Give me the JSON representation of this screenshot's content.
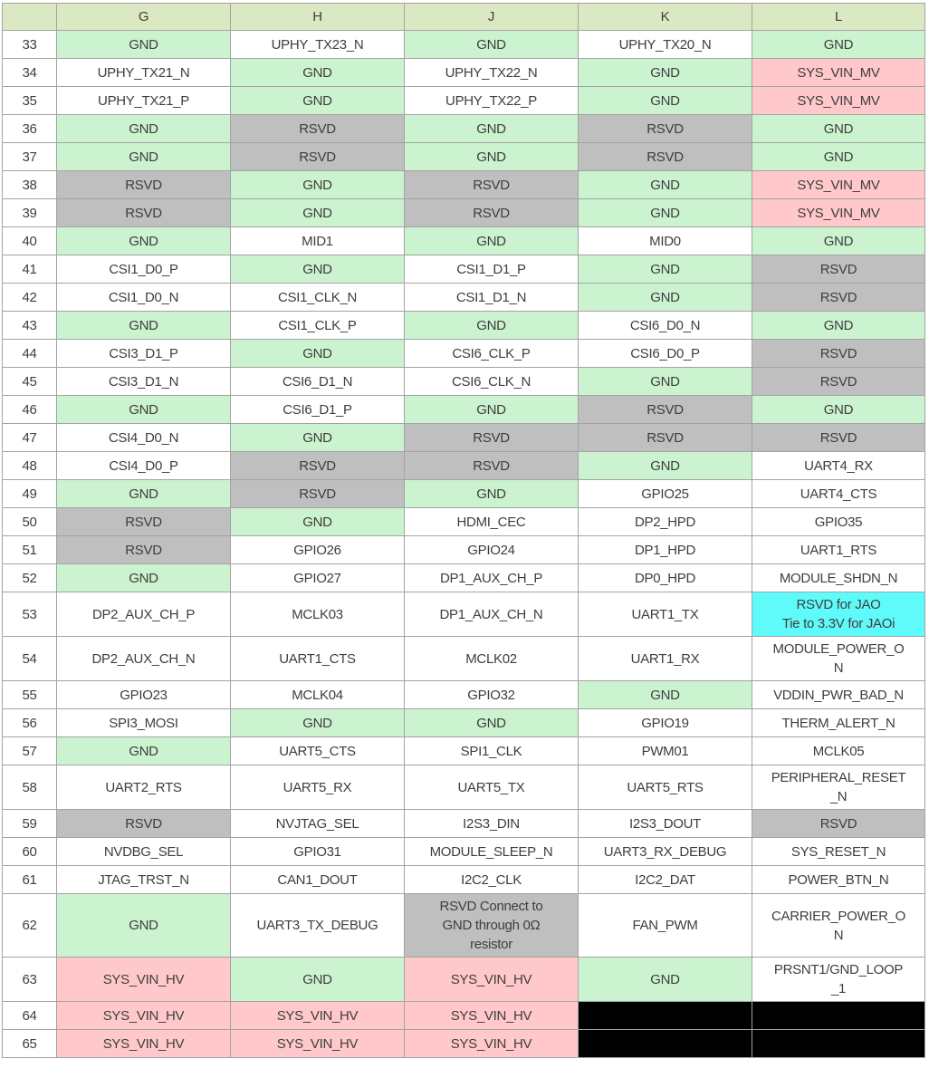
{
  "palette": {
    "header_bg": "#dbe9c2",
    "gnd": "#cbf3cf",
    "rsvd": "#bfbfbf",
    "power": "#ffc8ca",
    "special": "#5ffafa",
    "signal": "#ffffff",
    "blackout": "#000000",
    "border": "#a3a3a3",
    "text": "#3e3e3e"
  },
  "header": {
    "corner": "",
    "columns": [
      "G",
      "H",
      "J",
      "K",
      "L"
    ]
  },
  "rows": [
    {
      "num": "33",
      "cells": [
        {
          "t": "GND",
          "c": "gnd"
        },
        {
          "t": "UPHY_TX23_N",
          "c": "signal"
        },
        {
          "t": "GND",
          "c": "gnd"
        },
        {
          "t": "UPHY_TX20_N",
          "c": "signal"
        },
        {
          "t": "GND",
          "c": "gnd"
        }
      ]
    },
    {
      "num": "34",
      "cells": [
        {
          "t": "UPHY_TX21_N",
          "c": "signal"
        },
        {
          "t": "GND",
          "c": "gnd"
        },
        {
          "t": "UPHY_TX22_N",
          "c": "signal"
        },
        {
          "t": "GND",
          "c": "gnd"
        },
        {
          "t": "SYS_VIN_MV",
          "c": "power"
        }
      ]
    },
    {
      "num": "35",
      "cells": [
        {
          "t": "UPHY_TX21_P",
          "c": "signal"
        },
        {
          "t": "GND",
          "c": "gnd"
        },
        {
          "t": "UPHY_TX22_P",
          "c": "signal"
        },
        {
          "t": "GND",
          "c": "gnd"
        },
        {
          "t": "SYS_VIN_MV",
          "c": "power"
        }
      ]
    },
    {
      "num": "36",
      "cells": [
        {
          "t": "GND",
          "c": "gnd"
        },
        {
          "t": "RSVD",
          "c": "rsvd"
        },
        {
          "t": "GND",
          "c": "gnd"
        },
        {
          "t": "RSVD",
          "c": "rsvd"
        },
        {
          "t": "GND",
          "c": "gnd"
        }
      ]
    },
    {
      "num": "37",
      "cells": [
        {
          "t": "GND",
          "c": "gnd"
        },
        {
          "t": "RSVD",
          "c": "rsvd"
        },
        {
          "t": "GND",
          "c": "gnd"
        },
        {
          "t": "RSVD",
          "c": "rsvd"
        },
        {
          "t": "GND",
          "c": "gnd"
        }
      ]
    },
    {
      "num": "38",
      "cells": [
        {
          "t": "RSVD",
          "c": "rsvd"
        },
        {
          "t": "GND",
          "c": "gnd"
        },
        {
          "t": "RSVD",
          "c": "rsvd"
        },
        {
          "t": "GND",
          "c": "gnd"
        },
        {
          "t": "SYS_VIN_MV",
          "c": "power"
        }
      ]
    },
    {
      "num": "39",
      "cells": [
        {
          "t": "RSVD",
          "c": "rsvd"
        },
        {
          "t": "GND",
          "c": "gnd"
        },
        {
          "t": "RSVD",
          "c": "rsvd"
        },
        {
          "t": "GND",
          "c": "gnd"
        },
        {
          "t": "SYS_VIN_MV",
          "c": "power"
        }
      ]
    },
    {
      "num": "40",
      "cells": [
        {
          "t": "GND",
          "c": "gnd"
        },
        {
          "t": "MID1",
          "c": "signal"
        },
        {
          "t": "GND",
          "c": "gnd"
        },
        {
          "t": "MID0",
          "c": "signal"
        },
        {
          "t": "GND",
          "c": "gnd"
        }
      ]
    },
    {
      "num": "41",
      "cells": [
        {
          "t": "CSI1_D0_P",
          "c": "signal"
        },
        {
          "t": "GND",
          "c": "gnd"
        },
        {
          "t": "CSI1_D1_P",
          "c": "signal"
        },
        {
          "t": "GND",
          "c": "gnd"
        },
        {
          "t": "RSVD",
          "c": "rsvd"
        }
      ]
    },
    {
      "num": "42",
      "cells": [
        {
          "t": "CSI1_D0_N",
          "c": "signal"
        },
        {
          "t": "CSI1_CLK_N",
          "c": "signal"
        },
        {
          "t": "CSI1_D1_N",
          "c": "signal"
        },
        {
          "t": "GND",
          "c": "gnd"
        },
        {
          "t": "RSVD",
          "c": "rsvd"
        }
      ]
    },
    {
      "num": "43",
      "cells": [
        {
          "t": "GND",
          "c": "gnd"
        },
        {
          "t": "CSI1_CLK_P",
          "c": "signal"
        },
        {
          "t": "GND",
          "c": "gnd"
        },
        {
          "t": "CSI6_D0_N",
          "c": "signal"
        },
        {
          "t": "GND",
          "c": "gnd"
        }
      ]
    },
    {
      "num": "44",
      "cells": [
        {
          "t": "CSI3_D1_P",
          "c": "signal"
        },
        {
          "t": "GND",
          "c": "gnd"
        },
        {
          "t": "CSI6_CLK_P",
          "c": "signal"
        },
        {
          "t": "CSI6_D0_P",
          "c": "signal"
        },
        {
          "t": "RSVD",
          "c": "rsvd"
        }
      ]
    },
    {
      "num": "45",
      "cells": [
        {
          "t": "CSI3_D1_N",
          "c": "signal"
        },
        {
          "t": "CSI6_D1_N",
          "c": "signal"
        },
        {
          "t": "CSI6_CLK_N",
          "c": "signal"
        },
        {
          "t": "GND",
          "c": "gnd"
        },
        {
          "t": "RSVD",
          "c": "rsvd"
        }
      ]
    },
    {
      "num": "46",
      "cells": [
        {
          "t": "GND",
          "c": "gnd"
        },
        {
          "t": "CSI6_D1_P",
          "c": "signal"
        },
        {
          "t": "GND",
          "c": "gnd"
        },
        {
          "t": "RSVD",
          "c": "rsvd"
        },
        {
          "t": "GND",
          "c": "gnd"
        }
      ]
    },
    {
      "num": "47",
      "cells": [
        {
          "t": "CSI4_D0_N",
          "c": "signal"
        },
        {
          "t": "GND",
          "c": "gnd"
        },
        {
          "t": "RSVD",
          "c": "rsvd"
        },
        {
          "t": "RSVD",
          "c": "rsvd"
        },
        {
          "t": "RSVD",
          "c": "rsvd"
        }
      ]
    },
    {
      "num": "48",
      "cells": [
        {
          "t": "CSI4_D0_P",
          "c": "signal"
        },
        {
          "t": "RSVD",
          "c": "rsvd"
        },
        {
          "t": "RSVD",
          "c": "rsvd"
        },
        {
          "t": "GND",
          "c": "gnd"
        },
        {
          "t": "UART4_RX",
          "c": "signal"
        }
      ]
    },
    {
      "num": "49",
      "cells": [
        {
          "t": "GND",
          "c": "gnd"
        },
        {
          "t": "RSVD",
          "c": "rsvd"
        },
        {
          "t": "GND",
          "c": "gnd"
        },
        {
          "t": "GPIO25",
          "c": "signal"
        },
        {
          "t": "UART4_CTS",
          "c": "signal"
        }
      ]
    },
    {
      "num": "50",
      "cells": [
        {
          "t": "RSVD",
          "c": "rsvd"
        },
        {
          "t": "GND",
          "c": "gnd"
        },
        {
          "t": "HDMI_CEC",
          "c": "signal"
        },
        {
          "t": "DP2_HPD",
          "c": "signal"
        },
        {
          "t": "GPIO35",
          "c": "signal"
        }
      ]
    },
    {
      "num": "51",
      "cells": [
        {
          "t": "RSVD",
          "c": "rsvd"
        },
        {
          "t": "GPIO26",
          "c": "signal"
        },
        {
          "t": "GPIO24",
          "c": "signal"
        },
        {
          "t": "DP1_HPD",
          "c": "signal"
        },
        {
          "t": "UART1_RTS",
          "c": "signal"
        }
      ]
    },
    {
      "num": "52",
      "cells": [
        {
          "t": "GND",
          "c": "gnd"
        },
        {
          "t": "GPIO27",
          "c": "signal"
        },
        {
          "t": "DP1_AUX_CH_P",
          "c": "signal"
        },
        {
          "t": "DP0_HPD",
          "c": "signal"
        },
        {
          "t": "MODULE_SHDN_N",
          "c": "signal"
        }
      ]
    },
    {
      "num": "53",
      "cells": [
        {
          "t": "DP2_AUX_CH_P",
          "c": "signal"
        },
        {
          "t": "MCLK03",
          "c": "signal"
        },
        {
          "t": "DP1_AUX_CH_N",
          "c": "signal"
        },
        {
          "t": "UART1_TX",
          "c": "signal"
        },
        {
          "t": "RSVD for JAO\nTie to 3.3V for JAOi",
          "c": "special"
        }
      ]
    },
    {
      "num": "54",
      "cells": [
        {
          "t": "DP2_AUX_CH_N",
          "c": "signal"
        },
        {
          "t": "UART1_CTS",
          "c": "signal"
        },
        {
          "t": "MCLK02",
          "c": "signal"
        },
        {
          "t": "UART1_RX",
          "c": "signal"
        },
        {
          "t": "MODULE_POWER_O\nN",
          "c": "signal"
        }
      ]
    },
    {
      "num": "55",
      "cells": [
        {
          "t": "GPIO23",
          "c": "signal"
        },
        {
          "t": "MCLK04",
          "c": "signal"
        },
        {
          "t": "GPIO32",
          "c": "signal"
        },
        {
          "t": "GND",
          "c": "gnd"
        },
        {
          "t": "VDDIN_PWR_BAD_N",
          "c": "signal"
        }
      ]
    },
    {
      "num": "56",
      "cells": [
        {
          "t": "SPI3_MOSI",
          "c": "signal"
        },
        {
          "t": "GND",
          "c": "gnd"
        },
        {
          "t": "GND",
          "c": "gnd"
        },
        {
          "t": "GPIO19",
          "c": "signal"
        },
        {
          "t": "THERM_ALERT_N",
          "c": "signal"
        }
      ]
    },
    {
      "num": "57",
      "cells": [
        {
          "t": "GND",
          "c": "gnd"
        },
        {
          "t": "UART5_CTS",
          "c": "signal"
        },
        {
          "t": "SPI1_CLK",
          "c": "signal"
        },
        {
          "t": "PWM01",
          "c": "signal"
        },
        {
          "t": "MCLK05",
          "c": "signal"
        }
      ]
    },
    {
      "num": "58",
      "cells": [
        {
          "t": "UART2_RTS",
          "c": "signal"
        },
        {
          "t": "UART5_RX",
          "c": "signal"
        },
        {
          "t": "UART5_TX",
          "c": "signal"
        },
        {
          "t": "UART5_RTS",
          "c": "signal"
        },
        {
          "t": "PERIPHERAL_RESET\n_N",
          "c": "signal"
        }
      ]
    },
    {
      "num": "59",
      "cells": [
        {
          "t": "RSVD",
          "c": "rsvd"
        },
        {
          "t": "NVJTAG_SEL",
          "c": "signal"
        },
        {
          "t": "I2S3_DIN",
          "c": "signal"
        },
        {
          "t": "I2S3_DOUT",
          "c": "signal"
        },
        {
          "t": "RSVD",
          "c": "rsvd"
        }
      ]
    },
    {
      "num": "60",
      "cells": [
        {
          "t": "NVDBG_SEL",
          "c": "signal"
        },
        {
          "t": "GPIO31",
          "c": "signal"
        },
        {
          "t": "MODULE_SLEEP_N",
          "c": "signal"
        },
        {
          "t": "UART3_RX_DEBUG",
          "c": "signal"
        },
        {
          "t": "SYS_RESET_N",
          "c": "signal"
        }
      ]
    },
    {
      "num": "61",
      "cells": [
        {
          "t": "JTAG_TRST_N",
          "c": "signal"
        },
        {
          "t": "CAN1_DOUT",
          "c": "signal"
        },
        {
          "t": "I2C2_CLK",
          "c": "signal"
        },
        {
          "t": "I2C2_DAT",
          "c": "signal"
        },
        {
          "t": "POWER_BTN_N",
          "c": "signal"
        }
      ]
    },
    {
      "num": "62",
      "cells": [
        {
          "t": "GND",
          "c": "gnd"
        },
        {
          "t": "UART3_TX_DEBUG",
          "c": "signal"
        },
        {
          "t": "RSVD Connect to\nGND through 0Ω\nresistor",
          "c": "rsvd"
        },
        {
          "t": "FAN_PWM",
          "c": "signal"
        },
        {
          "t": "CARRIER_POWER_O\nN",
          "c": "signal"
        }
      ]
    },
    {
      "num": "63",
      "cells": [
        {
          "t": "SYS_VIN_HV",
          "c": "power"
        },
        {
          "t": "GND",
          "c": "gnd"
        },
        {
          "t": "SYS_VIN_HV",
          "c": "power"
        },
        {
          "t": "GND",
          "c": "gnd"
        },
        {
          "t": "PRSNT1/GND_LOOP\n_1",
          "c": "signal"
        }
      ]
    },
    {
      "num": "64",
      "cells": [
        {
          "t": "SYS_VIN_HV",
          "c": "power"
        },
        {
          "t": "SYS_VIN_HV",
          "c": "power"
        },
        {
          "t": "SYS_VIN_HV",
          "c": "power"
        },
        {
          "t": "",
          "c": "blackout"
        },
        {
          "t": "",
          "c": "blackout"
        }
      ]
    },
    {
      "num": "65",
      "cells": [
        {
          "t": "SYS_VIN_HV",
          "c": "power"
        },
        {
          "t": "SYS_VIN_HV",
          "c": "power"
        },
        {
          "t": "SYS_VIN_HV",
          "c": "power"
        },
        {
          "t": "",
          "c": "blackout"
        },
        {
          "t": "",
          "c": "blackout"
        }
      ]
    }
  ]
}
